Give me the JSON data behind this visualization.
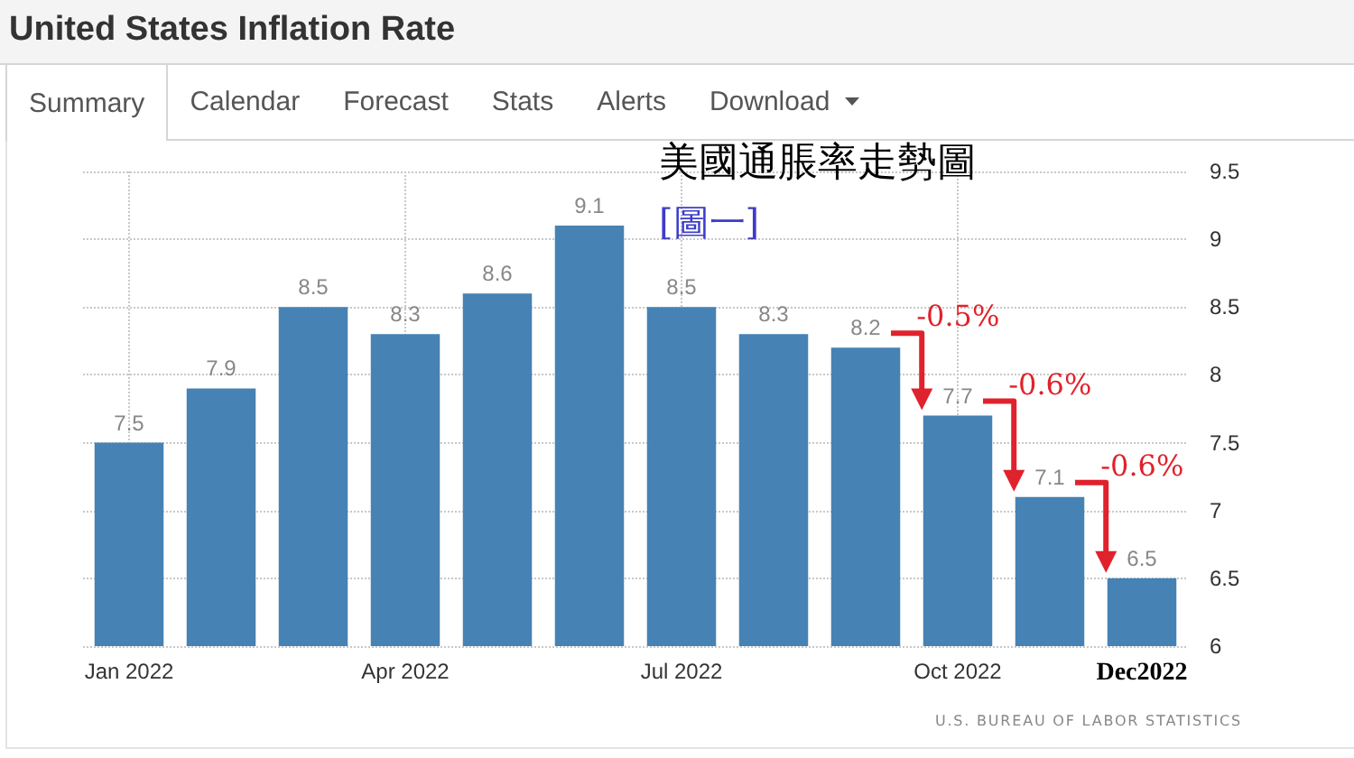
{
  "chart_data": {
    "type": "bar",
    "title": "United States Inflation Rate",
    "subtitle": "美國通脹率走勢圖",
    "categories": [
      "Jan 2022",
      null,
      null,
      "Apr 2022",
      null,
      null,
      "Jul 2022",
      null,
      null,
      "Oct 2022",
      null,
      "Dec2022"
    ],
    "values": [
      7.5,
      7.9,
      8.5,
      8.3,
      8.6,
      9.1,
      8.5,
      8.3,
      8.2,
      7.7,
      7.1,
      6.5
    ],
    "color": "#4682b4",
    "ylim": [
      6,
      9.5
    ],
    "yticks": [
      6,
      6.5,
      7,
      7.5,
      8,
      8.5,
      9,
      9.5
    ],
    "grid": true,
    "data_labels": true,
    "annotations": [
      "Summary",
      "Calendar",
      "Forecast",
      "Stats",
      "Alerts",
      "Download",
      "[圖一]",
      "U.S. BUREAU OF LABOR STATISTICS",
      "-0.5%",
      "-0.6%",
      "-0.6%"
    ]
  }
}
